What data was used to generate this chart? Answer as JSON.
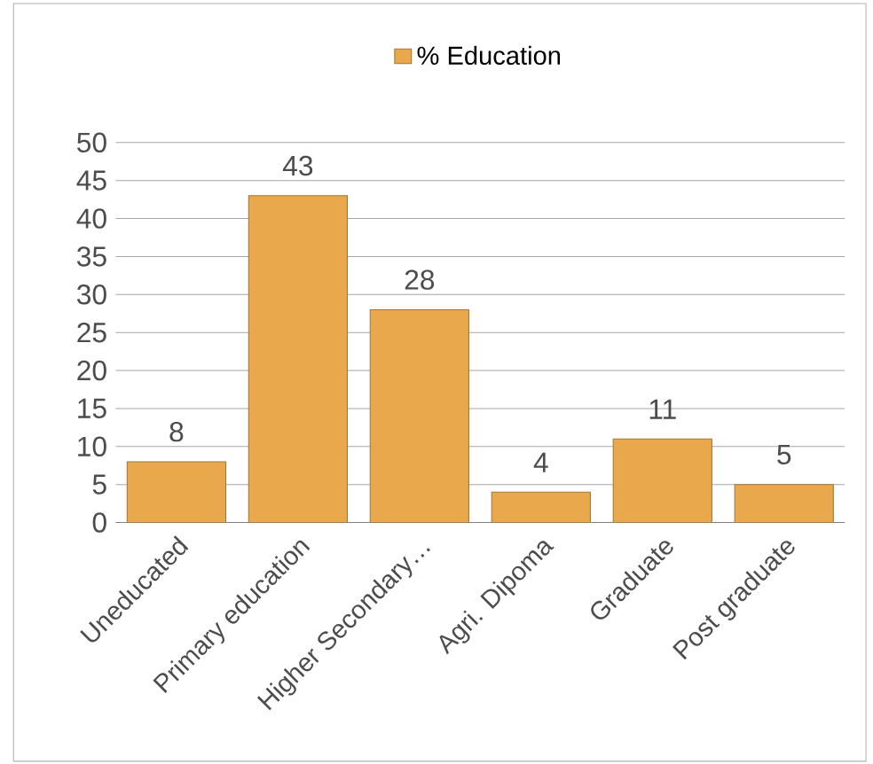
{
  "chart_data": {
    "type": "bar",
    "categories": [
      "Uneducated",
      "Primary education",
      "Higher Secondary…",
      "Agri. Dipoma",
      "Graduate",
      "Post graduate"
    ],
    "series": [
      {
        "name": "% Education",
        "color": "#e9a84c",
        "values": [
          8,
          43,
          28,
          4,
          11,
          5
        ]
      }
    ],
    "ylim": [
      0,
      50
    ],
    "yticks": [
      0,
      5,
      10,
      15,
      20,
      25,
      30,
      35,
      40,
      45,
      50
    ],
    "grid": "y",
    "legend": "top",
    "data_labels": true
  }
}
